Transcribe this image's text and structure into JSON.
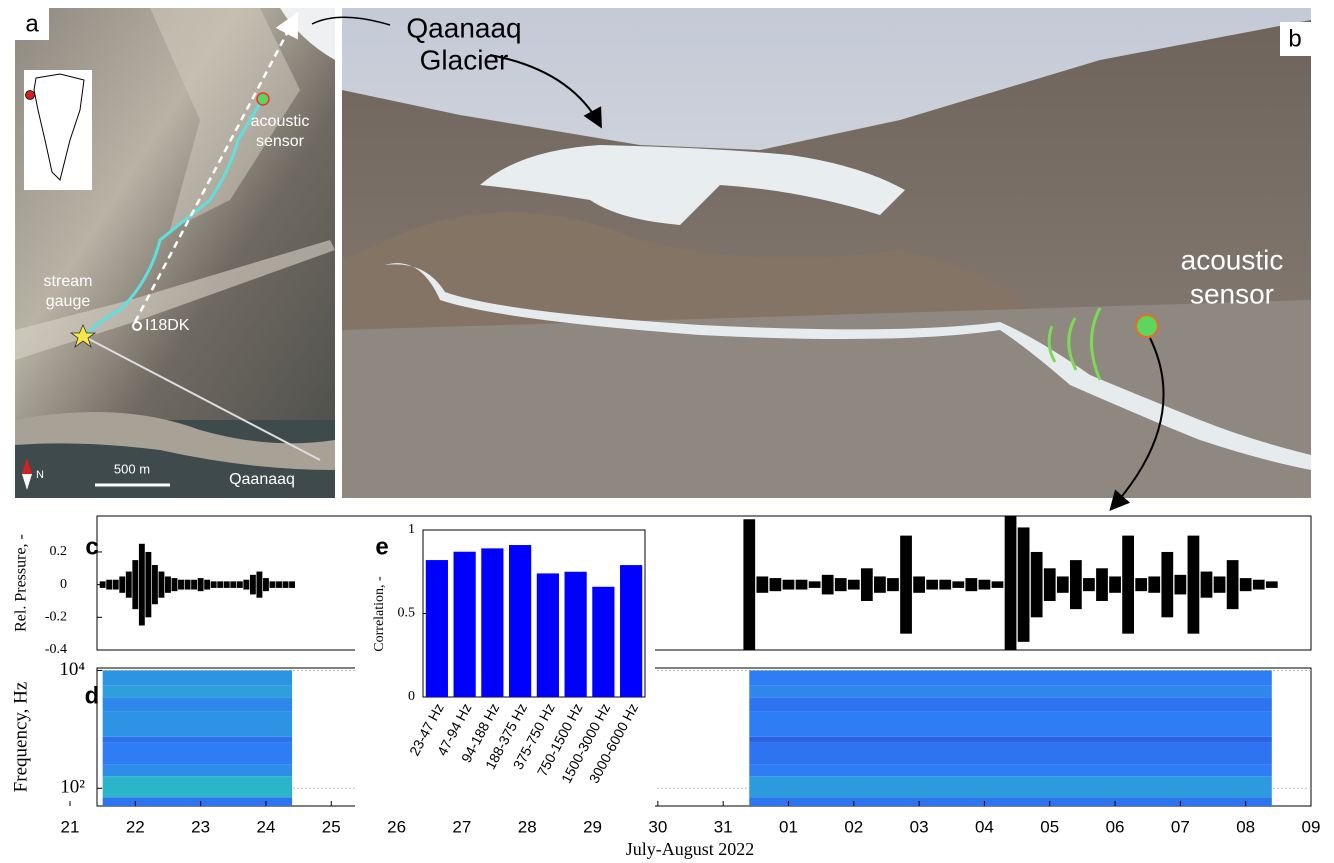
{
  "figure": {
    "panel_a": {
      "label": "a",
      "sensor_label": [
        "acoustic",
        "sensor"
      ],
      "gauge_label": [
        "stream",
        "gauge"
      ],
      "station": "I18DK",
      "scale": "500 m",
      "town": "Qaanaaq",
      "north": "N"
    },
    "panel_b": {
      "label": "b",
      "glacier_label": [
        "Qaanaaq",
        "Glacier"
      ],
      "sensor_label": [
        "acoustic",
        "sensor"
      ]
    }
  },
  "chart_data": [
    {
      "type": "waveform",
      "label": "c",
      "ylabel": "Rel. Pressure, -",
      "color": "#000000",
      "xlim": [
        21,
        40
      ],
      "ylim": [
        -0.4,
        0.42
      ],
      "yticks": [
        0.2,
        0,
        -0.2,
        -0.4
      ],
      "x": [
        21.5,
        21.6,
        21.7,
        21.8,
        21.9,
        22.0,
        22.1,
        22.2,
        22.3,
        22.4,
        22.5,
        22.6,
        22.7,
        22.8,
        22.9,
        23.0,
        23.1,
        23.2,
        23.3,
        23.4,
        23.5,
        23.6,
        23.7,
        23.8,
        23.9,
        24.0,
        24.1,
        24.2,
        24.3,
        24.4,
        31.4,
        31.6,
        31.8,
        32.0,
        32.2,
        32.4,
        32.6,
        32.8,
        33.0,
        33.2,
        33.4,
        33.6,
        33.8,
        34.0,
        34.2,
        34.4,
        34.6,
        34.8,
        35.0,
        35.2,
        35.4,
        35.6,
        35.8,
        36.0,
        36.2,
        36.4,
        36.6,
        36.8,
        37.0,
        37.2,
        37.4,
        37.6,
        37.8,
        38.0,
        38.2,
        38.4,
        38.6,
        38.8,
        39.0,
        39.2,
        39.4
      ],
      "values": [
        0.02,
        0.03,
        0.03,
        0.05,
        0.08,
        0.15,
        0.25,
        0.2,
        0.12,
        0.08,
        0.05,
        0.04,
        0.03,
        0.03,
        0.03,
        0.04,
        0.03,
        0.02,
        0.02,
        0.02,
        0.02,
        0.02,
        0.03,
        0.06,
        0.08,
        0.04,
        0.02,
        0.02,
        0.02,
        0.02,
        0.4,
        0.05,
        0.04,
        0.03,
        0.03,
        0.02,
        0.06,
        0.04,
        0.03,
        0.1,
        0.05,
        0.04,
        0.3,
        0.05,
        0.03,
        0.03,
        0.02,
        0.04,
        0.03,
        0.02,
        0.42,
        0.35,
        0.2,
        0.1,
        0.05,
        0.15,
        0.04,
        0.1,
        0.05,
        0.3,
        0.04,
        0.05,
        0.2,
        0.06,
        0.3,
        0.08,
        0.05,
        0.15,
        0.04,
        0.03,
        0.02
      ]
    },
    {
      "type": "spectrogram",
      "label": "d",
      "ylabel": "Frequency, Hz",
      "xlabel": "July-August 2022",
      "xlim": [
        21,
        40
      ],
      "log_y": true,
      "ylim": [
        50,
        11000
      ],
      "grid": true,
      "yticks": [
        {
          "value": 100,
          "label": "10²"
        },
        {
          "value": 10000,
          "label": "10⁴"
        }
      ],
      "xticks": [
        21,
        22,
        23,
        24,
        25,
        26,
        27,
        28,
        29,
        30,
        31,
        {
          "value": 32,
          "label": "01"
        },
        {
          "value": 33,
          "label": "02"
        },
        {
          "value": 34,
          "label": "03"
        },
        {
          "value": 35,
          "label": "04"
        },
        {
          "value": 36,
          "label": "05"
        },
        {
          "value": 37,
          "label": "06"
        },
        {
          "value": 38,
          "label": "07"
        },
        {
          "value": 39,
          "label": "08"
        },
        {
          "value": 40,
          "label": "09"
        }
      ],
      "spans": [
        [
          21.5,
          24.4
        ],
        [
          31.4,
          39.4
        ]
      ],
      "bins": [
        50,
        70,
        160,
        250,
        600,
        750,
        2000,
        3500,
        5500,
        10000
      ],
      "intensity": [
        [
          0.3,
          0.6,
          0.42,
          0.35,
          0.28,
          0.45,
          0.4,
          0.5,
          0.45
        ],
        [
          0.3,
          0.48,
          0.35,
          0.3,
          0.2,
          0.35,
          0.3,
          0.4,
          0.35
        ]
      ]
    },
    {
      "type": "bar",
      "label": "e",
      "ylabel": "Correlation, -",
      "color": "#0000ff",
      "categories": [
        "23-47 Hz",
        "47-94 Hz",
        "94-188 Hz",
        "188-375 Hz",
        "375-750 Hz",
        "750-1500 Hz",
        "1500-3000 Hz",
        "3000-6000 Hz"
      ],
      "values": [
        0.82,
        0.87,
        0.89,
        0.91,
        0.74,
        0.75,
        0.66,
        0.79
      ],
      "ylim": [
        0,
        1
      ],
      "yticks": [
        0,
        0.5,
        1
      ]
    }
  ]
}
